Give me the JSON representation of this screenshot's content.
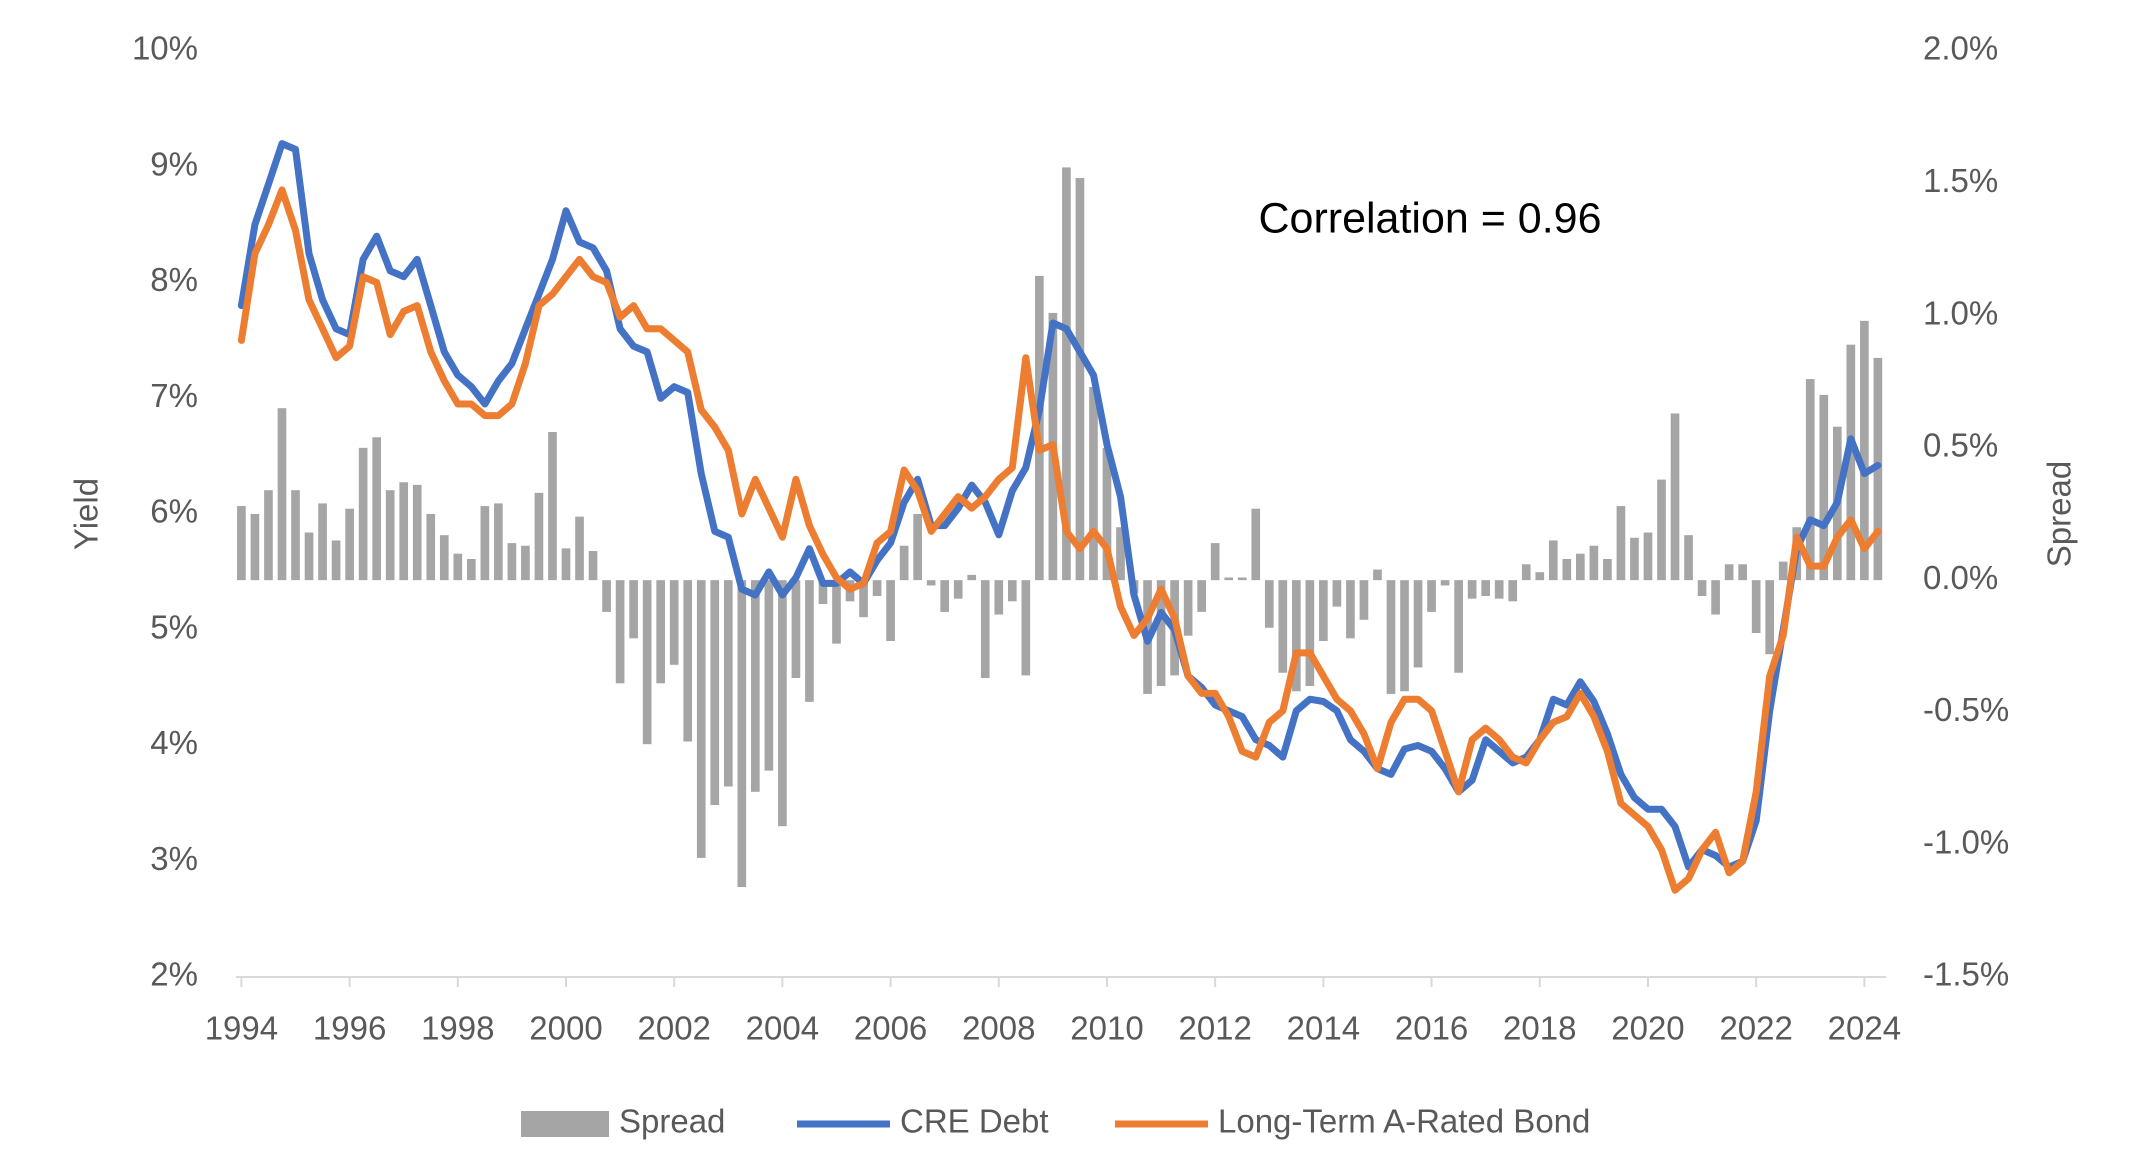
{
  "chart_data": {
    "type": "line",
    "annotation": "Correlation = 0.96",
    "y_label": "Yield",
    "y2_label": "Spread",
    "xlim": [
      1993.9,
      2024.4
    ],
    "xticks": [
      1994,
      1996,
      1998,
      2000,
      2002,
      2004,
      2006,
      2008,
      2010,
      2012,
      2014,
      2016,
      2018,
      2020,
      2022,
      2024
    ],
    "ylim": [
      2,
      10
    ],
    "yticks": [
      {
        "value": 2,
        "label": "2%"
      },
      {
        "value": 3,
        "label": "3%"
      },
      {
        "value": 4,
        "label": "4%"
      },
      {
        "value": 5,
        "label": "5%"
      },
      {
        "value": 6,
        "label": "6%"
      },
      {
        "value": 7,
        "label": "7%"
      },
      {
        "value": 8,
        "label": "8%"
      },
      {
        "value": 9,
        "label": "9%"
      },
      {
        "value": 10,
        "label": "10%"
      }
    ],
    "y2lim": [
      -1.5,
      2.0
    ],
    "y2ticks": [
      {
        "value": -1.5,
        "label": "-1.5%"
      },
      {
        "value": -1.0,
        "label": "-1.0%"
      },
      {
        "value": -0.5,
        "label": "-0.5%"
      },
      {
        "value": 0,
        "label": "0.0%"
      },
      {
        "value": 0.5,
        "label": "0.5%"
      },
      {
        "value": 1.0,
        "label": "1.0%"
      },
      {
        "value": 1.5,
        "label": "1.5%"
      },
      {
        "value": 2.0,
        "label": "2.0%"
      }
    ],
    "legend": "bottom",
    "x": [
      1994,
      1994.25,
      1994.5,
      1994.75,
      1995,
      1995.25,
      1995.5,
      1995.75,
      1996,
      1996.25,
      1996.5,
      1996.75,
      1997,
      1997.25,
      1997.5,
      1997.75,
      1998,
      1998.25,
      1998.5,
      1998.75,
      1999,
      1999.25,
      1999.5,
      1999.75,
      2000,
      2000.25,
      2000.5,
      2000.75,
      2001,
      2001.25,
      2001.5,
      2001.75,
      2002,
      2002.25,
      2002.5,
      2002.75,
      2003,
      2003.25,
      2003.5,
      2003.75,
      2004,
      2004.25,
      2004.5,
      2004.75,
      2005,
      2005.25,
      2005.5,
      2005.75,
      2006,
      2006.25,
      2006.5,
      2006.75,
      2007,
      2007.25,
      2007.5,
      2007.75,
      2008,
      2008.25,
      2008.5,
      2008.75,
      2009,
      2009.25,
      2009.5,
      2009.75,
      2010,
      2010.25,
      2010.5,
      2010.75,
      2011,
      2011.25,
      2011.5,
      2011.75,
      2012,
      2012.25,
      2012.5,
      2012.75,
      2013,
      2013.25,
      2013.5,
      2013.75,
      2014,
      2014.25,
      2014.5,
      2014.75,
      2015,
      2015.25,
      2015.5,
      2015.75,
      2016,
      2016.25,
      2016.5,
      2016.75,
      2017,
      2017.25,
      2017.5,
      2017.75,
      2018,
      2018.25,
      2018.5,
      2018.75,
      2019,
      2019.25,
      2019.5,
      2019.75,
      2020,
      2020.25,
      2020.5,
      2020.75,
      2021,
      2021.25,
      2021.5,
      2021.75,
      2022,
      2022.25,
      2022.5,
      2022.75,
      2023,
      2023.25,
      2023.5,
      2023.75,
      2024,
      2024.25
    ],
    "series": [
      {
        "name": "Spread",
        "type": "bar",
        "axis": "y2",
        "color": "#a5a5a5",
        "values": [
          0.28,
          0.25,
          0.34,
          0.65,
          0.34,
          0.18,
          0.29,
          0.15,
          0.27,
          0.5,
          0.54,
          0.34,
          0.37,
          0.36,
          0.25,
          0.17,
          0.1,
          0.08,
          0.28,
          0.29,
          0.14,
          0.13,
          0.33,
          0.56,
          0.12,
          0.24,
          0.11,
          -0.12,
          -0.39,
          -0.22,
          -0.62,
          -0.39,
          -0.32,
          -0.61,
          -1.05,
          -0.85,
          -0.78,
          -1.16,
          -0.8,
          -0.72,
          -0.93,
          -0.37,
          -0.46,
          -0.09,
          -0.24,
          -0.08,
          -0.14,
          -0.06,
          -0.23,
          0.13,
          0.25,
          -0.02,
          -0.12,
          -0.07,
          0.02,
          -0.37,
          -0.13,
          -0.08,
          -0.36,
          1.15,
          1.01,
          1.56,
          1.52,
          0.73,
          0.5,
          0.2,
          -0.05,
          -0.43,
          -0.4,
          -0.36,
          -0.21,
          -0.12,
          0.14,
          0.01,
          0.01,
          0.27,
          -0.18,
          -0.35,
          -0.42,
          -0.4,
          -0.23,
          -0.1,
          -0.22,
          -0.15,
          0.04,
          -0.43,
          -0.42,
          -0.33,
          -0.12,
          -0.02,
          -0.35,
          -0.07,
          -0.06,
          -0.07,
          -0.08,
          0.06,
          0.03,
          0.15,
          0.08,
          0.1,
          0.13,
          0.08,
          0.28,
          0.16,
          0.18,
          0.38,
          0.63,
          0.17,
          -0.06,
          -0.13,
          0.06,
          0.06,
          -0.2,
          -0.28,
          0.07,
          0.2,
          0.76,
          0.7,
          0.58,
          0.89,
          0.98,
          0.84
        ]
      },
      {
        "name": "CRE Debt",
        "type": "line",
        "color": "#4472c4",
        "values": [
          7.8,
          8.5,
          8.85,
          9.2,
          9.15,
          8.25,
          7.85,
          7.6,
          7.55,
          8.2,
          8.4,
          8.1,
          8.05,
          8.2,
          7.8,
          7.4,
          7.2,
          7.1,
          6.95,
          7.15,
          7.3,
          7.6,
          7.9,
          8.2,
          8.62,
          8.35,
          8.3,
          8.1,
          7.6,
          7.45,
          7.4,
          7.0,
          7.1,
          7.05,
          6.35,
          5.85,
          5.8,
          5.35,
          5.3,
          5.5,
          5.3,
          5.45,
          5.7,
          5.4,
          5.4,
          5.5,
          5.4,
          5.6,
          5.75,
          6.1,
          6.3,
          5.9,
          5.9,
          6.05,
          6.25,
          6.1,
          5.82,
          6.2,
          6.4,
          6.9,
          7.65,
          7.6,
          7.4,
          7.2,
          6.6,
          6.15,
          5.3,
          4.9,
          5.15,
          5.0,
          4.6,
          4.5,
          4.35,
          4.3,
          4.25,
          4.05,
          4.0,
          3.9,
          4.3,
          4.4,
          4.38,
          4.3,
          4.05,
          3.95,
          3.8,
          3.75,
          3.97,
          4.0,
          3.95,
          3.8,
          3.6,
          3.7,
          4.05,
          3.95,
          3.85,
          3.9,
          4.05,
          4.4,
          4.35,
          4.55,
          4.38,
          4.1,
          3.75,
          3.55,
          3.45,
          3.45,
          3.3,
          2.95,
          3.1,
          3.05,
          2.95,
          3.0,
          3.35,
          4.3,
          5.0,
          5.7,
          5.95,
          5.9,
          6.1,
          6.65,
          6.35,
          6.42
        ]
      },
      {
        "name": "Long-Term A-Rated Bond",
        "type": "line",
        "color": "#ed7d31",
        "values": [
          7.5,
          8.25,
          8.5,
          8.8,
          8.45,
          7.85,
          7.6,
          7.35,
          7.45,
          8.05,
          8.0,
          7.55,
          7.75,
          7.8,
          7.4,
          7.15,
          6.95,
          6.95,
          6.85,
          6.85,
          6.95,
          7.3,
          7.8,
          7.9,
          8.05,
          8.2,
          8.05,
          8.0,
          7.7,
          7.8,
          7.6,
          7.6,
          7.5,
          7.4,
          6.9,
          6.75,
          6.55,
          6.0,
          6.3,
          6.05,
          5.8,
          6.3,
          5.9,
          5.65,
          5.45,
          5.35,
          5.4,
          5.75,
          5.85,
          6.38,
          6.2,
          5.85,
          6.0,
          6.15,
          6.05,
          6.15,
          6.3,
          6.4,
          7.35,
          6.55,
          6.6,
          5.85,
          5.7,
          5.85,
          5.7,
          5.2,
          4.95,
          5.1,
          5.35,
          5.1,
          4.6,
          4.45,
          4.45,
          4.25,
          3.95,
          3.9,
          4.2,
          4.3,
          4.8,
          4.8,
          4.6,
          4.4,
          4.3,
          4.1,
          3.8,
          4.2,
          4.4,
          4.4,
          4.3,
          3.95,
          3.6,
          4.05,
          4.15,
          4.05,
          3.9,
          3.85,
          4.05,
          4.2,
          4.25,
          4.45,
          4.25,
          3.95,
          3.5,
          3.4,
          3.3,
          3.1,
          2.75,
          2.85,
          3.1,
          3.25,
          2.9,
          3.0,
          3.6,
          4.6,
          4.95,
          5.8,
          5.55,
          5.55,
          5.8,
          5.95,
          5.7,
          5.85
        ]
      }
    ]
  }
}
